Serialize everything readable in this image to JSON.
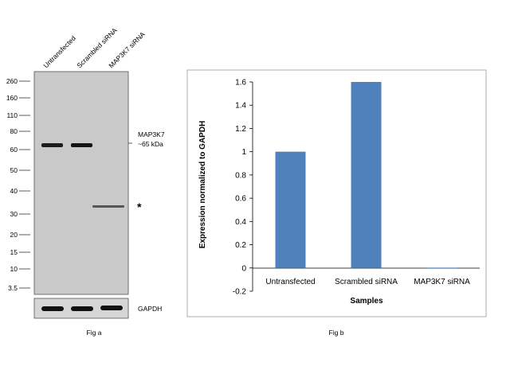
{
  "fig_a": {
    "caption": "Fig a",
    "lanes": [
      "Untransfected",
      "Scrambled siRNA",
      "MAP3K7  siRNA"
    ],
    "ladder": [
      "260",
      "160",
      "110",
      "80",
      "60",
      "50",
      "40",
      "30",
      "20",
      "15",
      "10",
      "3.5"
    ],
    "target_label": "MAP3K7",
    "target_size": "~65 kDa",
    "asterisk": "*",
    "loading_label": "GAPDH"
  },
  "chart_data": {
    "type": "bar",
    "categories": [
      "Untransfected",
      "Scrambled siRNA",
      "MAP3K7 siRNA"
    ],
    "values": [
      1.0,
      1.6,
      0.0
    ],
    "xlabel": "Samples",
    "ylabel": "Expression normalized to GAPDH",
    "ylim": [
      -0.2,
      1.6
    ],
    "yticks": [
      "1.6",
      "1.4",
      "1.2",
      "1",
      "0.8",
      "0.6",
      "0.4",
      "0.2",
      "0",
      "-0.2"
    ],
    "grid": false,
    "bar_color": "#4f81bd",
    "caption": "Fig b"
  }
}
